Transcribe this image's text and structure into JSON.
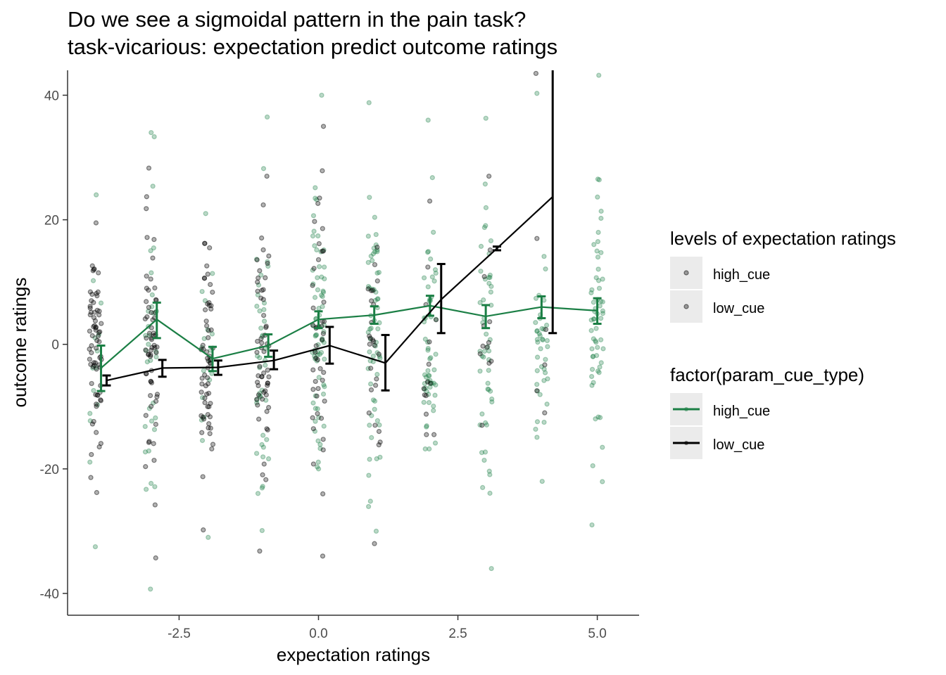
{
  "title_line1": "Do we see a sigmoidal pattern in the pain task?",
  "title_line2": "task-vicarious: expectation predict outcome ratings",
  "legend": {
    "points_title": "levels of expectation ratings",
    "points_items": [
      "high_cue",
      "low_cue"
    ],
    "lines_title": "factor(param_cue_type)",
    "lines_items": [
      "high_cue",
      "low_cue"
    ]
  },
  "colors": {
    "high_cue": "#1b7f45",
    "low_cue": "#000000",
    "axis": "#4d4d4d",
    "legend_key_bg": "#ebebeb"
  },
  "chart_data": {
    "type": "line",
    "title": "Do we see a sigmoidal pattern in the pain task? task-vicarious: expectation predict outcome ratings",
    "xlabel": "expectation ratings",
    "ylabel": "outcome ratings",
    "xlim": [
      -4.5,
      5.75
    ],
    "ylim": [
      -43.5,
      44
    ],
    "x_ticks": [
      -2.5,
      0.0,
      2.5,
      5.0
    ],
    "x_tick_labels": [
      "-2.5",
      "0.0",
      "2.5",
      "5.0"
    ],
    "y_ticks": [
      -40,
      -20,
      0,
      20,
      40
    ],
    "y_tick_labels": [
      "-40",
      "-20",
      "0",
      "20",
      "40"
    ],
    "grid": false,
    "legend_position": "right",
    "series": [
      {
        "name": "high_cue",
        "x": [
          -3.9,
          -2.9,
          -1.9,
          -0.9,
          0.0,
          1.0,
          2.0,
          3.0,
          4.0,
          5.0
        ],
        "y": [
          -3.8,
          4.0,
          -2.3,
          -0.2,
          4.0,
          4.7,
          6.2,
          4.5,
          6.0,
          5.4
        ],
        "ci_low": [
          -7.5,
          1.0,
          -4.3,
          -2.0,
          2.6,
          3.3,
          4.6,
          2.6,
          4.2,
          3.3
        ],
        "ci_high": [
          -0.2,
          6.7,
          -0.4,
          1.6,
          5.3,
          6.1,
          7.8,
          6.3,
          7.7,
          7.4
        ]
      },
      {
        "name": "low_cue",
        "x": [
          -3.8,
          -2.8,
          -1.8,
          -0.8,
          0.2,
          1.2,
          2.2,
          3.2,
          4.2
        ],
        "y": [
          -5.8,
          -3.8,
          -3.7,
          -2.6,
          -0.2,
          -3.0,
          7.2,
          15.4,
          23.7
        ],
        "ci_low": [
          -6.6,
          -5.2,
          -4.9,
          -4.0,
          -3.1,
          -7.4,
          1.8,
          15.1,
          1.8
        ],
        "ci_high": [
          -5.0,
          -2.5,
          -2.6,
          -1.0,
          2.8,
          1.5,
          12.9,
          15.7,
          45.0
        ]
      }
    ],
    "point_clouds": [
      {
        "name": "high_cue",
        "x_centers": [
          -4.0,
          -3.0,
          -2.0,
          -1.0,
          0.0,
          1.0,
          2.0,
          3.0,
          4.0,
          5.0
        ],
        "counts": [
          14,
          32,
          18,
          40,
          70,
          60,
          56,
          50,
          40,
          60
        ],
        "min": [
          -32.5,
          -39.3,
          -31.0,
          -29.9,
          -20.0,
          -30.0,
          -16.8,
          -36.0,
          -22.0,
          -29.0
        ],
        "max": [
          24.0,
          34.0,
          21.0,
          36.5,
          40.0,
          38.8,
          36.0,
          36.3,
          40.3,
          43.2
        ]
      },
      {
        "name": "low_cue",
        "x_centers": [
          -4.0,
          -3.0,
          -2.0,
          -1.0,
          0.0,
          1.0,
          2.0,
          3.0,
          4.0
        ],
        "counts": [
          70,
          60,
          60,
          56,
          44,
          26,
          14,
          12,
          6
        ],
        "min": [
          -23.8,
          -34.3,
          -29.8,
          -33.2,
          -34.0,
          -32.0,
          -14.5,
          -13.0,
          -11.0
        ],
        "max": [
          19.5,
          28.3,
          16.2,
          27.0,
          35.0,
          15.6,
          23.0,
          27.0,
          43.5
        ]
      }
    ]
  }
}
